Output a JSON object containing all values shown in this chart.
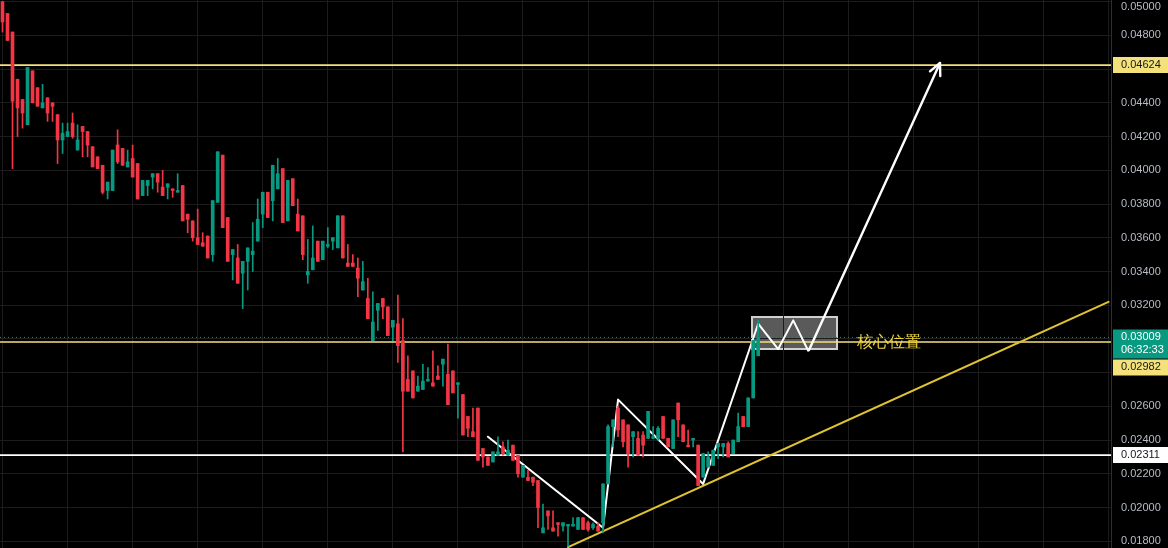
{
  "chart_data": {
    "type": "candlestick",
    "categories": [
      null,
      null,
      null,
      null,
      null,
      null,
      null,
      null,
      null,
      null,
      null,
      null,
      null,
      null,
      null,
      null,
      null,
      null,
      null,
      null,
      null,
      null,
      null,
      null,
      null,
      null,
      null,
      null,
      null,
      null,
      null,
      null,
      null,
      null,
      null,
      null,
      null,
      null,
      null,
      null,
      null,
      null,
      null,
      null,
      null,
      null,
      null,
      null,
      null,
      null,
      null,
      null,
      null,
      null,
      null,
      null,
      null,
      null,
      null,
      null,
      null,
      null,
      null,
      null,
      null,
      null,
      null,
      null,
      null,
      null,
      null,
      null,
      null,
      null,
      null,
      null,
      null,
      null,
      null,
      null,
      null,
      null,
      null,
      null,
      null,
      null,
      null,
      null,
      null,
      null,
      null,
      null,
      null,
      null,
      null,
      null,
      null,
      null,
      null,
      null,
      null,
      null,
      null,
      null,
      null,
      null,
      null,
      null,
      null,
      null,
      null,
      null,
      null,
      null,
      null,
      null,
      null,
      null,
      null,
      null,
      null,
      null,
      null,
      null,
      null,
      null,
      null,
      null,
      null,
      null,
      null,
      null,
      null,
      null,
      null,
      null,
      null,
      null,
      null,
      null,
      null,
      null,
      null,
      null,
      null,
      null,
      null,
      null,
      null,
      null,
      null,
      null,
      null,
      null,
      null,
      null,
      null,
      null,
      null,
      null,
      null,
      null,
      null,
      null,
      null,
      null,
      null,
      null,
      null,
      null,
      null,
      null,
      null,
      null,
      null,
      null,
      null,
      null,
      null,
      null,
      null,
      null,
      null,
      null,
      null,
      null,
      null,
      null,
      null,
      null,
      null,
      null,
      null,
      null,
      null,
      null,
      null,
      null,
      null,
      null,
      null,
      null,
      null,
      null,
      null,
      null,
      null,
      null,
      null,
      null,
      null,
      null,
      null,
      null,
      null,
      null,
      null,
      null,
      null,
      null,
      null,
      null
    ],
    "ohlc": [
      [
        0.05,
        0.05,
        0.0482,
        0.0488
      ],
      [
        0.0493,
        0.0493,
        0.0477,
        0.0477
      ],
      [
        0.0482,
        0.0482,
        0.0401,
        0.0441
      ],
      [
        0.0454,
        0.0454,
        0.042,
        0.0437
      ],
      [
        0.0442,
        0.0442,
        0.0425,
        0.0434
      ],
      [
        0.0427,
        0.0461,
        0.0427,
        0.0461
      ],
      [
        0.0459,
        0.0459,
        0.044,
        0.044
      ],
      [
        0.0449,
        0.0449,
        0.0438,
        0.0438
      ],
      [
        0.0437,
        0.0451,
        0.0437,
        0.044
      ],
      [
        0.0443,
        0.0443,
        0.0429,
        0.0434
      ],
      [
        0.044,
        0.044,
        0.0429,
        0.0438
      ],
      [
        0.0433,
        0.0433,
        0.0404,
        0.0418
      ],
      [
        0.0418,
        0.0428,
        0.041,
        0.0422
      ],
      [
        0.042,
        0.0428,
        0.042,
        0.0423
      ],
      [
        0.0428,
        0.0434,
        0.0419,
        0.042
      ],
      [
        0.0412,
        0.0427,
        0.0412,
        0.0418
      ],
      [
        0.0426,
        0.0426,
        0.0408,
        0.0423
      ],
      [
        0.0423,
        0.0423,
        0.0408,
        0.0415
      ],
      [
        0.0414,
        0.0414,
        0.0402,
        0.0402
      ],
      [
        0.0408,
        0.0408,
        0.0401,
        0.0401
      ],
      [
        0.0403,
        0.0403,
        0.0386,
        0.0387
      ],
      [
        0.0388,
        0.0393,
        0.0383,
        0.0393
      ],
      [
        0.0388,
        0.0412,
        0.0388,
        0.0412
      ],
      [
        0.0415,
        0.0424,
        0.0404,
        0.0405
      ],
      [
        0.0413,
        0.0413,
        0.0403,
        0.0403
      ],
      [
        0.0402,
        0.0412,
        0.0402,
        0.0405
      ],
      [
        0.0407,
        0.0415,
        0.0396,
        0.0396
      ],
      [
        0.0404,
        0.0404,
        0.0383,
        0.0383
      ],
      [
        0.0385,
        0.0394,
        0.0385,
        0.0394
      ],
      [
        0.0391,
        0.0394,
        0.0385,
        0.0394
      ],
      [
        0.0396,
        0.0398,
        0.0389,
        0.0398
      ],
      [
        0.0398,
        0.0398,
        0.0387,
        0.0393
      ],
      [
        0.039,
        0.04,
        0.0385,
        0.0385
      ],
      [
        0.039,
        0.0392,
        0.0383,
        0.0392
      ],
      [
        0.0389,
        0.0389,
        0.0384,
        0.0388
      ],
      [
        0.0387,
        0.0398,
        0.0387,
        0.0388
      ],
      [
        0.0391,
        0.0391,
        0.037,
        0.037
      ],
      [
        0.0374,
        0.0374,
        0.0363,
        0.0371
      ],
      [
        0.037,
        0.037,
        0.0358,
        0.036
      ],
      [
        0.036,
        0.0377,
        0.0356,
        0.0356
      ],
      [
        0.0357,
        0.0363,
        0.0355,
        0.0355
      ],
      [
        0.0361,
        0.0361,
        0.0348,
        0.0348
      ],
      [
        0.035,
        0.0382,
        0.0346,
        0.0382
      ],
      [
        0.0381,
        0.0411,
        0.0381,
        0.0411
      ],
      [
        0.0409,
        0.0409,
        0.0366,
        0.0366
      ],
      [
        0.0372,
        0.0372,
        0.0346,
        0.0346
      ],
      [
        0.035,
        0.0353,
        0.0335,
        0.0353
      ],
      [
        0.0348,
        0.0356,
        0.0333,
        0.0333
      ],
      [
        0.0339,
        0.0346,
        0.0318,
        0.0346
      ],
      [
        0.0346,
        0.0354,
        0.0329,
        0.0354
      ],
      [
        0.035,
        0.0369,
        0.034,
        0.0352
      ],
      [
        0.0358,
        0.0383,
        0.0358,
        0.0371
      ],
      [
        0.0374,
        0.0387,
        0.0366,
        0.0387
      ],
      [
        0.0387,
        0.0387,
        0.0372,
        0.0372
      ],
      [
        0.0382,
        0.0403,
        0.037,
        0.0403
      ],
      [
        0.0389,
        0.0407,
        0.0389,
        0.0398
      ],
      [
        0.0401,
        0.0401,
        0.0369,
        0.0369
      ],
      [
        0.037,
        0.0394,
        0.037,
        0.0394
      ],
      [
        0.0395,
        0.0395,
        0.0379,
        0.0379
      ],
      [
        0.0374,
        0.0383,
        0.0364,
        0.0364
      ],
      [
        0.0373,
        0.0373,
        0.0347,
        0.035
      ],
      [
        0.0338,
        0.0359,
        0.0333,
        0.034
      ],
      [
        0.0341,
        0.0367,
        0.0341,
        0.0348
      ],
      [
        0.0358,
        0.0358,
        0.0346,
        0.0346
      ],
      [
        0.0347,
        0.0358,
        0.0347,
        0.0358
      ],
      [
        0.0355,
        0.0366,
        0.0354,
        0.0356
      ],
      [
        0.0358,
        0.036,
        0.0353,
        0.036
      ],
      [
        0.0354,
        0.0373,
        0.0354,
        0.0373
      ],
      [
        0.0373,
        0.0373,
        0.0348,
        0.0348
      ],
      [
        0.0345,
        0.0356,
        0.0343,
        0.0343
      ],
      [
        0.0345,
        0.035,
        0.0343,
        0.0343
      ],
      [
        0.0342,
        0.0348,
        0.0325,
        0.0336
      ],
      [
        0.0329,
        0.0346,
        0.0329,
        0.0334
      ],
      [
        0.0324,
        0.0336,
        0.0312,
        0.0312
      ],
      [
        0.0299,
        0.0328,
        0.0299,
        0.031
      ],
      [
        0.0317,
        0.0321,
        0.0305,
        0.0321
      ],
      [
        0.0324,
        0.0324,
        0.0312,
        0.0319
      ],
      [
        0.0319,
        0.0319,
        0.0302,
        0.0302
      ],
      [
        0.0307,
        0.0311,
        0.0299,
        0.0311
      ],
      [
        0.0309,
        0.0326,
        0.0286,
        0.0296
      ],
      [
        0.0299,
        0.0312,
        0.0233,
        0.0269
      ],
      [
        0.0276,
        0.029,
        0.0269,
        0.0269
      ],
      [
        0.0281,
        0.0281,
        0.0265,
        0.0265
      ],
      [
        0.0269,
        0.0278,
        0.0269,
        0.0272
      ],
      [
        0.027,
        0.0285,
        0.027,
        0.0275
      ],
      [
        0.0275,
        0.0283,
        0.0275,
        0.0276
      ],
      [
        0.0274,
        0.0293,
        0.0272,
        0.0272
      ],
      [
        0.0278,
        0.0284,
        0.0276,
        0.0276
      ],
      [
        0.0285,
        0.0288,
        0.0272,
        0.0288
      ],
      [
        0.0279,
        0.0297,
        0.0261,
        0.0261
      ],
      [
        0.0281,
        0.0281,
        0.0268,
        0.0268
      ],
      [
        0.0273,
        0.0274,
        0.0253,
        0.0274
      ],
      [
        0.0267,
        0.0267,
        0.0243,
        0.0243
      ],
      [
        0.0254,
        0.0254,
        0.0242,
        0.0247
      ],
      [
        0.0245,
        0.0259,
        0.0242,
        0.0242
      ],
      [
        0.0259,
        0.0259,
        0.0228,
        0.0228
      ],
      [
        0.0235,
        0.0235,
        0.0224,
        0.023
      ],
      [
        0.023,
        0.023,
        0.0225,
        0.0225
      ],
      [
        0.0227,
        0.0233,
        0.0227,
        0.0233
      ],
      [
        0.0231,
        0.0242,
        0.0231,
        0.0233
      ],
      [
        0.0236,
        0.0239,
        0.0231,
        0.0232
      ],
      [
        0.0231,
        0.024,
        0.0231,
        0.0234
      ],
      [
        0.0237,
        0.0237,
        0.0228,
        0.0228
      ],
      [
        0.0231,
        0.0231,
        0.0218,
        0.022
      ],
      [
        0.0218,
        0.0225,
        0.0218,
        0.0225
      ],
      [
        0.0218,
        0.0222,
        0.0216,
        0.0216
      ],
      [
        0.0218,
        0.0218,
        0.0213,
        0.0215
      ],
      [
        0.0216,
        0.0216,
        0.0188,
        0.02
      ],
      [
        0.0185,
        0.0202,
        0.0185,
        0.0188
      ],
      [
        0.0198,
        0.0198,
        0.0187,
        0.0195
      ],
      [
        0.0188,
        0.0198,
        0.0186,
        0.0186
      ],
      [
        0.0191,
        0.0191,
        0.0183,
        0.019
      ],
      [
        0.0189,
        0.0191,
        0.0186,
        0.0191
      ],
      [
        0.0189,
        0.019,
        0.0177,
        0.019
      ],
      [
        0.0189,
        0.0194,
        0.0189,
        0.019
      ],
      [
        0.0187,
        0.0194,
        0.0187,
        0.0194
      ],
      [
        0.0194,
        0.0194,
        0.0187,
        0.0187
      ],
      [
        0.0191,
        0.0192,
        0.0186,
        0.0187
      ],
      [
        0.0188,
        0.0191,
        0.0187,
        0.019
      ],
      [
        0.0189,
        0.0191,
        0.0186,
        0.0186
      ],
      [
        0.0191,
        0.0214,
        0.0185,
        0.0214
      ],
      [
        0.0214,
        0.0249,
        0.0214,
        0.0248
      ],
      [
        0.0248,
        0.0252,
        0.0236,
        0.0252
      ],
      [
        0.0259,
        0.026,
        0.0242,
        0.0246
      ],
      [
        0.0252,
        0.0252,
        0.0236,
        0.0239
      ],
      [
        0.0249,
        0.0249,
        0.0224,
        0.0232
      ],
      [
        0.0242,
        0.0245,
        0.023,
        0.0245
      ],
      [
        0.0241,
        0.0245,
        0.0231,
        0.0231
      ],
      [
        0.0243,
        0.0245,
        0.023,
        0.0237
      ],
      [
        0.0241,
        0.0257,
        0.0241,
        0.0257
      ],
      [
        0.0241,
        0.0248,
        0.0241,
        0.0242
      ],
      [
        0.0241,
        0.0248,
        0.024,
        0.0247
      ],
      [
        0.0254,
        0.0254,
        0.0241,
        0.0241
      ],
      [
        0.0241,
        0.0241,
        0.0236,
        0.0236
      ],
      [
        0.0235,
        0.0252,
        0.0235,
        0.0252
      ],
      [
        0.0262,
        0.0262,
        0.0242,
        0.0252
      ],
      [
        0.0249,
        0.0249,
        0.0239,
        0.0239
      ],
      [
        0.0237,
        0.0246,
        0.0236,
        0.0236
      ],
      [
        0.024,
        0.0241,
        0.0236,
        0.0241
      ],
      [
        0.0237,
        0.0237,
        0.0213,
        0.0213
      ],
      [
        0.0218,
        0.0232,
        0.0218,
        0.0232
      ],
      [
        0.0224,
        0.0233,
        0.0224,
        0.023
      ],
      [
        0.0225,
        0.0234,
        0.0225,
        0.0234
      ],
      [
        0.0236,
        0.0238,
        0.0229,
        0.0238
      ],
      [
        0.0236,
        0.0238,
        0.023,
        0.0238
      ],
      [
        0.0238,
        0.0239,
        0.023,
        0.023
      ],
      [
        0.0232,
        0.024,
        0.0232,
        0.024
      ],
      [
        0.0239,
        0.0256,
        0.0239,
        0.0248
      ],
      [
        0.0254,
        0.0254,
        0.0248,
        0.0248
      ],
      [
        0.0248,
        0.0265,
        0.0248,
        0.0265
      ],
      [
        0.0265,
        0.0299,
        0.0265,
        0.0299
      ],
      [
        0.029,
        0.0311,
        0.029,
        0.03009
      ],
      null,
      null,
      null,
      null,
      null,
      null,
      null,
      null,
      null,
      null,
      null,
      null,
      null,
      null,
      null,
      null,
      null,
      null,
      null,
      null,
      null,
      null,
      null,
      null,
      null,
      null,
      null,
      null,
      null,
      null,
      null,
      null,
      null,
      null,
      null,
      null,
      null,
      null,
      null,
      null,
      null,
      null,
      null,
      null,
      null,
      null,
      null,
      null,
      null,
      null,
      null,
      null,
      null,
      null,
      null,
      null,
      null,
      null,
      null,
      null,
      null,
      null,
      null,
      null,
      null,
      null,
      null,
      null,
      null,
      null
    ],
    "colors": [
      "#f23645",
      "#f23645",
      "#f23645",
      "#f23645",
      "#f23645",
      "#089981",
      "#f23645",
      "#f23645",
      "#089981",
      "#f23645",
      "#f23645",
      "#f23645",
      "#089981",
      "#089981",
      "#f23645",
      "#089981",
      "#f23645",
      "#f23645",
      "#f23645",
      "#f23645",
      "#f23645",
      "#089981",
      "#089981",
      "#f23645",
      "#f23645",
      "#089981",
      "#f23645",
      "#f23645",
      "#089981",
      "#089981",
      "#089981",
      "#f23645",
      "#f23645",
      "#089981",
      "#f23645",
      "#089981",
      "#f23645",
      "#f23645",
      "#f23645",
      "#f23645",
      "#f23645",
      "#f23645",
      "#089981",
      "#089981",
      "#f23645",
      "#f23645",
      "#089981",
      "#f23645",
      "#089981",
      "#089981",
      "#089981",
      "#089981",
      "#089981",
      "#f23645",
      "#089981",
      "#089981",
      "#f23645",
      "#089981",
      "#f23645",
      "#f23645",
      "#f23645",
      "#089981",
      "#089981",
      "#f23645",
      "#089981",
      "#089981",
      "#089981",
      "#089981",
      "#f23645",
      "#f23645",
      "#f23645",
      "#f23645",
      "#089981",
      "#f23645",
      "#089981",
      "#089981",
      "#f23645",
      "#f23645",
      "#089981",
      "#f23645",
      "#f23645",
      "#f23645",
      "#f23645",
      "#089981",
      "#089981",
      "#089981",
      "#f23645",
      "#f23645",
      "#089981",
      "#f23645",
      "#f23645",
      "#089981",
      "#f23645",
      "#f23645",
      "#f23645",
      "#f23645",
      "#f23645",
      "#f23645",
      "#089981",
      "#089981",
      "#f23645",
      "#089981",
      "#f23645",
      "#f23645",
      "#089981",
      "#f23645",
      "#f23645",
      "#f23645",
      "#089981",
      "#f23645",
      "#f23645",
      "#f23645",
      "#089981",
      "#089981",
      "#089981",
      "#089981",
      "#f23645",
      "#f23645",
      "#089981",
      "#f23645",
      "#089981",
      "#089981",
      "#089981",
      "#f23645",
      "#f23645",
      "#f23645",
      "#089981",
      "#f23645",
      "#f23645",
      "#089981",
      "#089981",
      "#089981",
      "#f23645",
      "#f23645",
      "#089981",
      "#f23645",
      "#f23645",
      "#f23645",
      "#089981",
      "#f23645",
      "#089981",
      "#089981",
      "#089981",
      "#089981",
      "#089981",
      "#f23645",
      "#089981",
      "#089981",
      "#f23645",
      "#089981",
      "#089981",
      "#089981",
      null,
      null,
      null,
      null,
      null,
      null,
      null,
      null,
      null,
      null,
      null,
      null,
      null,
      null,
      null,
      null,
      null,
      null,
      null,
      null,
      null,
      null,
      null,
      null,
      null,
      null,
      null,
      null,
      null,
      null,
      null,
      null,
      null,
      null,
      null,
      null,
      null,
      null,
      null,
      null,
      null,
      null,
      null,
      null,
      null,
      null,
      null,
      null,
      null,
      null,
      null,
      null,
      null,
      null,
      null,
      null,
      null,
      null,
      null,
      null,
      null,
      null,
      null,
      null,
      null,
      null,
      null,
      null,
      null,
      null
    ],
    "series": [
      {
        "type": "line",
        "color": "#e0c330",
        "values": [
          null,
          null,
          null,
          null,
          null,
          null,
          null,
          null,
          null,
          null,
          null,
          null,
          null,
          null,
          null,
          null,
          null,
          null,
          null,
          null,
          null,
          null,
          null,
          null,
          null,
          null,
          null,
          null,
          null,
          null,
          null,
          null,
          null,
          null,
          null,
          null,
          null,
          null,
          null,
          null,
          null,
          null,
          null,
          null,
          null,
          null,
          null,
          null,
          null,
          null,
          null,
          null,
          null,
          null,
          null,
          null,
          null,
          null,
          null,
          null,
          null,
          null,
          null,
          null,
          null,
          null,
          null,
          null,
          null,
          null,
          null,
          null,
          null,
          null,
          null,
          null,
          null,
          null,
          null,
          null,
          null,
          null,
          null,
          null,
          null,
          null,
          null,
          null,
          null,
          null,
          null,
          null,
          null,
          null,
          null,
          null,
          null,
          null,
          null,
          null,
          null,
          null,
          null,
          null,
          null,
          null,
          null,
          null,
          null,
          null,
          null,
          null,
          null,
          0.01765,
          null,
          null,
          null,
          null,
          null,
          null,
          null,
          null,
          null,
          null,
          null,
          null,
          null,
          null,
          null,
          null,
          null,
          null,
          null,
          null,
          null,
          null,
          null,
          null,
          null,
          null,
          null,
          null,
          null,
          null,
          null,
          null,
          null,
          null,
          null,
          null,
          null,
          null,
          null,
          null,
          null,
          null,
          null,
          null,
          null,
          null,
          null,
          null,
          null,
          null,
          null,
          null,
          null,
          null,
          null,
          null,
          null,
          null,
          null,
          null,
          null,
          null,
          null,
          null,
          null,
          null,
          null,
          null,
          null,
          null,
          null,
          null,
          null,
          null,
          null,
          null,
          null,
          null,
          null,
          null,
          null,
          null,
          null,
          null,
          null,
          null,
          null,
          null,
          null,
          null,
          null,
          null,
          null,
          null,
          null,
          null,
          null,
          null,
          null,
          null,
          null,
          null,
          null,
          null,
          null,
          null,
          null,
          0.0322
        ]
      },
      {
        "type": "line",
        "color": "#ffffff",
        "values": [
          null,
          null,
          null,
          null,
          null,
          null,
          null,
          null,
          null,
          null,
          null,
          null,
          null,
          null,
          null,
          null,
          null,
          null,
          null,
          null,
          null,
          null,
          null,
          null,
          null,
          null,
          null,
          null,
          null,
          null,
          null,
          null,
          null,
          null,
          null,
          null,
          null,
          null,
          null,
          null,
          null,
          null,
          null,
          null,
          null,
          null,
          null,
          null,
          null,
          null,
          null,
          null,
          null,
          null,
          null,
          null,
          null,
          null,
          null,
          null,
          null,
          null,
          null,
          null,
          null,
          null,
          null,
          null,
          null,
          null,
          null,
          null,
          null,
          null,
          null,
          null,
          null,
          null,
          null,
          null,
          null,
          null,
          null,
          null,
          null,
          null,
          null,
          null,
          null,
          null,
          null,
          null,
          null,
          null,
          null,
          null,
          null,
          0.0242,
          null,
          null,
          null,
          null,
          null,
          null,
          null,
          null,
          null,
          null,
          null,
          null,
          null,
          null,
          null,
          null,
          null,
          null,
          null,
          null,
          null,
          null,
          0.0188,
          null,
          null,
          0.0264,
          null,
          null,
          null,
          null,
          null,
          null,
          null,
          null,
          null,
          null,
          null,
          null,
          null,
          null,
          null,
          null,
          0.0214,
          null,
          null,
          null,
          null,
          null,
          null,
          null,
          null,
          null,
          null,
          0.0309,
          null,
          null,
          null,
          0.0294,
          null,
          null,
          0.0311,
          null,
          null,
          0.0293,
          null,
          null,
          null,
          null,
          null,
          null,
          null,
          null,
          null,
          null,
          null,
          null,
          null,
          null,
          null,
          null,
          null,
          null,
          null,
          null,
          null,
          null,
          null,
          null,
          null,
          null,
          null,
          null,
          null,
          null,
          null,
          null,
          null,
          null,
          null,
          null,
          null,
          null,
          null,
          null,
          null,
          null,
          null,
          null,
          null,
          null,
          null,
          null,
          null,
          null,
          null,
          null,
          null,
          null,
          null,
          null,
          null,
          null,
          null,
          null
        ]
      }
    ],
    "ylim": [
      0.0176,
      0.0501
    ],
    "yticks": [
      {
        "value": 0.018,
        "label": "0.01800"
      },
      {
        "value": 0.02,
        "label": "0.02000"
      },
      {
        "value": 0.022,
        "label": "0.02200"
      },
      {
        "value": 0.024,
        "label": "0.02400"
      },
      {
        "value": 0.026,
        "label": "0.02600"
      },
      {
        "value": 0.028,
        "label": null
      },
      {
        "value": 0.03,
        "label": null
      },
      {
        "value": 0.032,
        "label": "0.03200"
      },
      {
        "value": 0.034,
        "label": "0.03400"
      },
      {
        "value": 0.036,
        "label": "0.03600"
      },
      {
        "value": 0.038,
        "label": "0.03800"
      },
      {
        "value": 0.04,
        "label": "0.04000"
      },
      {
        "value": 0.042,
        "label": "0.04200"
      },
      {
        "value": 0.044,
        "label": "0.04400"
      },
      {
        "value": 0.046,
        "label": null
      },
      {
        "value": 0.048,
        "label": "0.04800"
      },
      {
        "value": 0.05,
        "label": "0.05000"
      }
    ],
    "tick_labels": "y",
    "grid": true,
    "ref_lines": [
      {
        "axis": "y",
        "value": 0.03009,
        "label": "0.03009",
        "color": "#089981",
        "line_style": "dotted"
      },
      {
        "axis": "y",
        "value": 0.04624,
        "label": "0.04624",
        "color": "#f4e17a"
      },
      {
        "axis": "y",
        "value": 0.02982,
        "label": "0.02982",
        "color": "#f4e17a"
      },
      {
        "axis": "y",
        "value": 0.02311,
        "label": "0.02311",
        "color": "#ffffff"
      }
    ],
    "annotations": [
      "核心位置",
      "06:32:33"
    ]
  }
}
